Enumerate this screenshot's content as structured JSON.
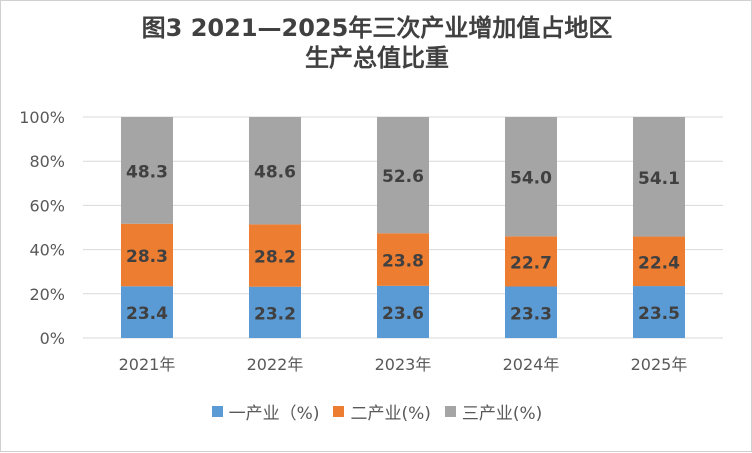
{
  "chart_data": {
    "type": "bar",
    "stacked": true,
    "title_line1": "图3  2021—2025年三次产业增加值占地区",
    "title_line2": "生产总值比重",
    "categories": [
      "2021年",
      "2022年",
      "2023年",
      "2024年",
      "2025年"
    ],
    "series": [
      {
        "name": "一产业（%)",
        "color": "#5b9bd5",
        "values": [
          23.4,
          23.2,
          23.6,
          23.3,
          23.5
        ]
      },
      {
        "name": "二产业(%)",
        "color": "#ed7d31",
        "values": [
          28.3,
          28.2,
          23.8,
          22.7,
          22.4
        ]
      },
      {
        "name": "三产业(%)",
        "color": "#a5a5a5",
        "values": [
          48.3,
          48.6,
          52.6,
          54.0,
          54.1
        ]
      }
    ],
    "ylim": [
      0,
      100
    ],
    "y_ticks": [
      "0%",
      "20%",
      "40%",
      "60%",
      "80%",
      "100%"
    ],
    "grid": true,
    "legend_position": "bottom",
    "data_labels": true
  }
}
